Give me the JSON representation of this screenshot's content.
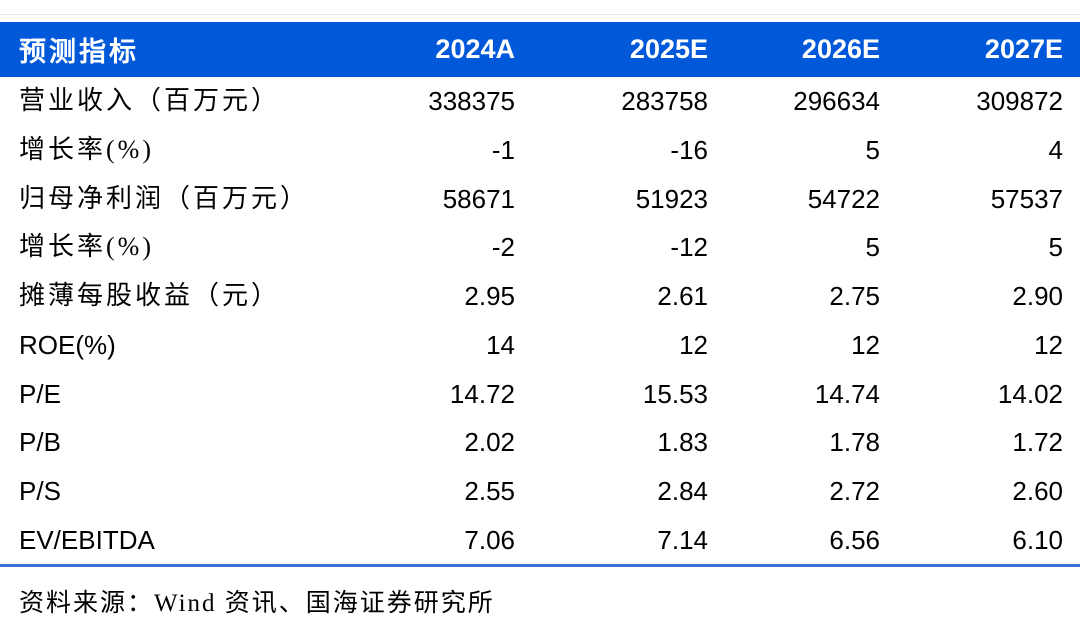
{
  "colors": {
    "header_bg": "#0159DA",
    "header_text": "#FFFFFF",
    "body_text": "#000000",
    "divider_blue": "#3D70D8",
    "top_hairline": "#E6E6E6"
  },
  "table": {
    "columns": [
      "预测指标",
      "2024A",
      "2025E",
      "2026E",
      "2027E"
    ],
    "rows": [
      {
        "label": "营业收入（百万元）",
        "values": [
          "338375",
          "283758",
          "296634",
          "309872"
        ]
      },
      {
        "label": "增长率(%)",
        "values": [
          "-1",
          "-16",
          "5",
          "4"
        ]
      },
      {
        "label": "归母净利润（百万元）",
        "values": [
          "58671",
          "51923",
          "54722",
          "57537"
        ]
      },
      {
        "label": "增长率(%)",
        "values": [
          "-2",
          "-12",
          "5",
          "5"
        ]
      },
      {
        "label": "摊薄每股收益（元）",
        "values": [
          "2.95",
          "2.61",
          "2.75",
          "2.90"
        ]
      },
      {
        "label": "ROE(%)",
        "values": [
          "14",
          "12",
          "12",
          "12"
        ]
      },
      {
        "label": "P/E",
        "values": [
          "14.72",
          "15.53",
          "14.74",
          "14.02"
        ]
      },
      {
        "label": "P/B",
        "values": [
          "2.02",
          "1.83",
          "1.78",
          "1.72"
        ]
      },
      {
        "label": "P/S",
        "values": [
          "2.55",
          "2.84",
          "2.72",
          "2.60"
        ]
      },
      {
        "label": "EV/EBITDA",
        "values": [
          "7.06",
          "7.14",
          "6.56",
          "6.10"
        ]
      }
    ]
  },
  "footer": {
    "source_text": "资料来源：Wind 资讯、国海证券研究所"
  }
}
